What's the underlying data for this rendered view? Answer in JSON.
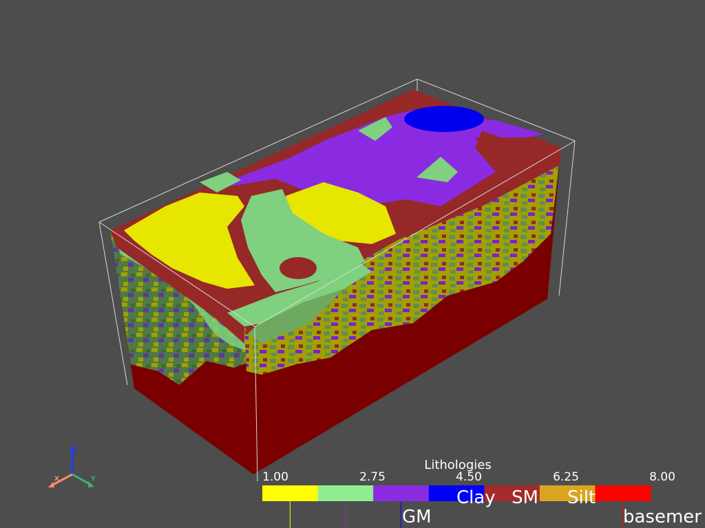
{
  "scalar_bar": {
    "title": "Lithologies",
    "ticks": [
      "1.00",
      "2.75",
      "4.50",
      "6.25",
      "8.00"
    ],
    "range": [
      1,
      8
    ],
    "colors": [
      "#ffff00",
      "#90ee90",
      "#8a2be2",
      "#0000ff",
      "#a52a2a",
      "#daa520",
      "#ff0000"
    ],
    "annotations": [
      {
        "label": "Clay",
        "value": 5
      },
      {
        "label": "SM",
        "value": 6
      },
      {
        "label": "Silt",
        "value": 7
      },
      {
        "label": "GM",
        "value": 4
      },
      {
        "label": "basemer",
        "value": 8
      }
    ]
  },
  "orientation_axes": {
    "x": {
      "label": "X",
      "color": "#ff8c69"
    },
    "y": {
      "label": "Y",
      "color": "#3cb371"
    },
    "z": {
      "label": "Z",
      "color": "#1e3cff"
    }
  },
  "scene": {
    "background": "#4d4d4d",
    "palette": {
      "yellow": "#e6e600",
      "green": "#7fd17f",
      "purple": "#8a2be2",
      "blue": "#0000f0",
      "brick": "#962828",
      "olive": "#a0a000",
      "red": "#8b0000"
    }
  }
}
